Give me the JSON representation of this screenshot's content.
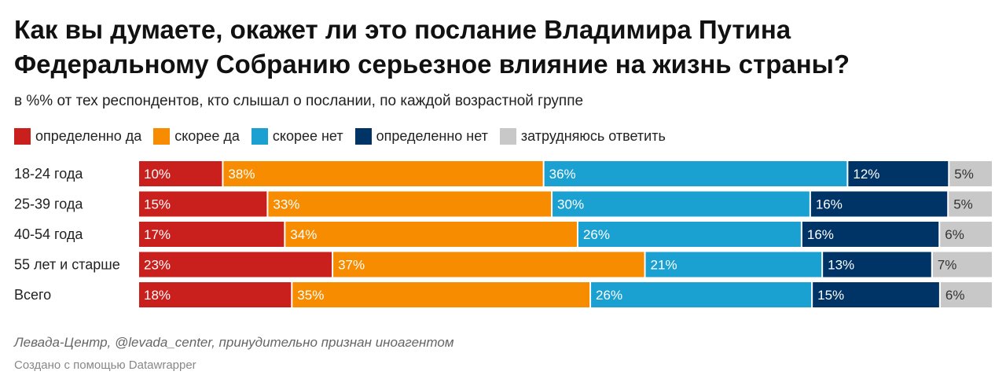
{
  "title": "Как вы думаете, окажет ли это послание Владимира Путина Федеральному Собранию серьезное влияние на жизнь страны?",
  "subtitle": "в %% от тех респондентов, кто слышал о послании, по каждой возрастной группе",
  "source": "Левада-Центр, @levada_center, принудительно признан иноагентом",
  "credit": "Создано с помощью Datawrapper",
  "chart_data": {
    "type": "bar",
    "orientation": "horizontal",
    "stacked": true,
    "unit": "%",
    "categories": [
      "18-24 года",
      "25-39 года",
      "40-54 года",
      "55 лет и старше",
      "Всего"
    ],
    "series": [
      {
        "name": "определенно да",
        "color": "#c9201d",
        "text_color": "#ffffff",
        "values": [
          10,
          15,
          17,
          23,
          18
        ]
      },
      {
        "name": "скорее да",
        "color": "#f78c00",
        "text_color": "#ffffff",
        "values": [
          38,
          33,
          34,
          37,
          35
        ]
      },
      {
        "name": "скорее нет",
        "color": "#1ba1d1",
        "text_color": "#ffffff",
        "values": [
          36,
          30,
          26,
          21,
          26
        ]
      },
      {
        "name": "определенно нет",
        "color": "#003466",
        "text_color": "#ffffff",
        "values": [
          12,
          16,
          16,
          13,
          15
        ]
      },
      {
        "name": "затрудняюсь ответить",
        "color": "#c8c8c8",
        "text_color": "#333333",
        "values": [
          5,
          5,
          6,
          7,
          6
        ]
      }
    ],
    "xlim": [
      0,
      100
    ],
    "legend_position": "top",
    "grid": false
  }
}
